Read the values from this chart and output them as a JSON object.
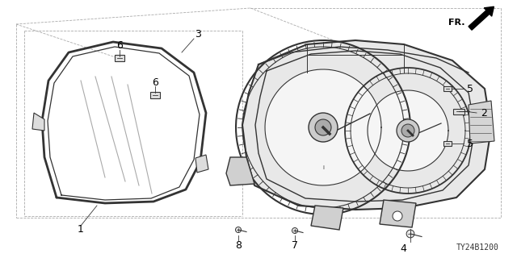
{
  "diagram_code": "TY24B1200",
  "bg_color": "#ffffff",
  "line_color": "#333333",
  "light_line": "#888888",
  "text_color": "#000000",
  "figsize": [
    6.4,
    3.2
  ],
  "dpi": 100
}
